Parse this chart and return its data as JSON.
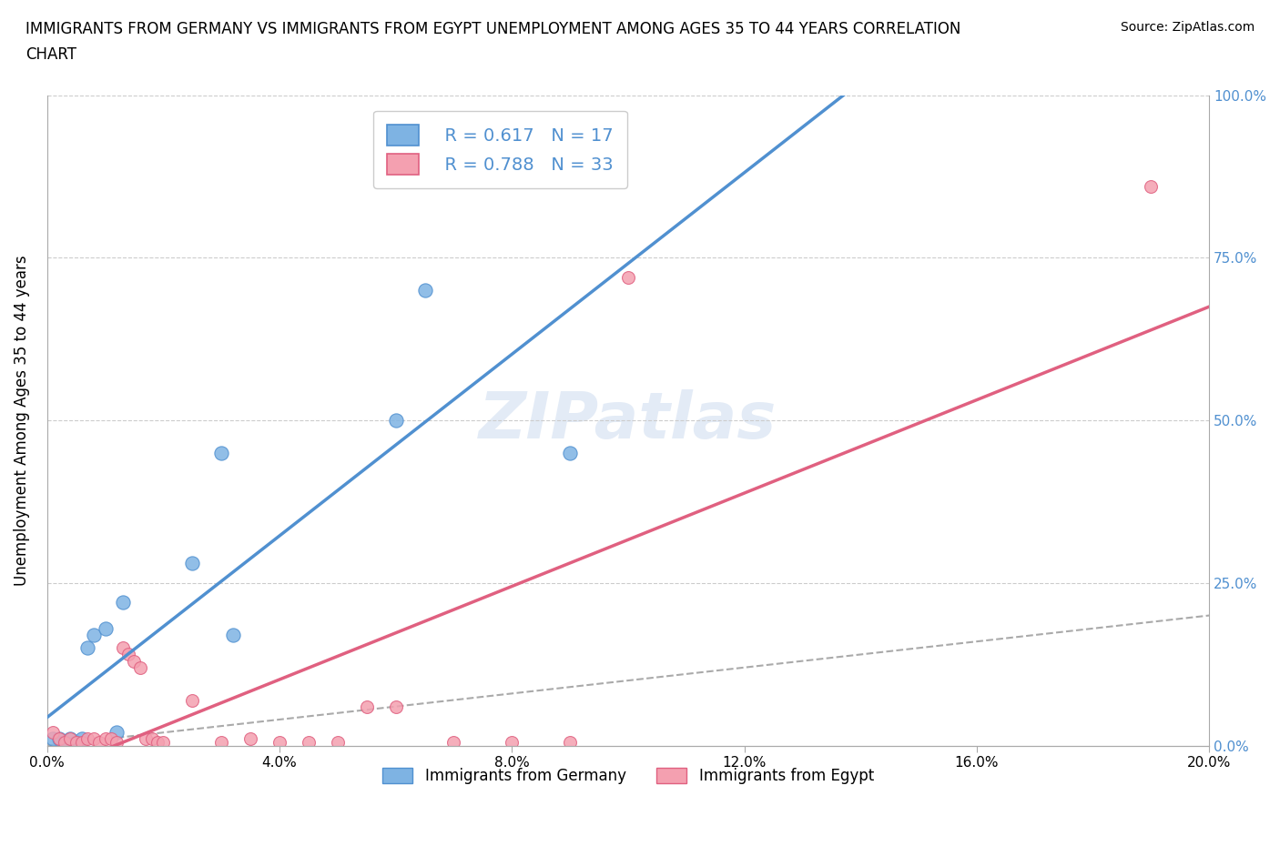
{
  "title_line1": "IMMIGRANTS FROM GERMANY VS IMMIGRANTS FROM EGYPT UNEMPLOYMENT AMONG AGES 35 TO 44 YEARS CORRELATION",
  "title_line2": "CHART",
  "source": "Source: ZipAtlas.com",
  "ylabel": "Unemployment Among Ages 35 to 44 years",
  "xlabel_germany": "Immigrants from Germany",
  "xlabel_egypt": "Immigrants from Egypt",
  "watermark": "ZIPatlas",
  "germany_scatter_x": [
    0.001,
    0.002,
    0.003,
    0.004,
    0.005,
    0.006,
    0.007,
    0.008,
    0.01,
    0.012,
    0.013,
    0.025,
    0.03,
    0.032,
    0.06,
    0.065,
    0.09
  ],
  "germany_scatter_y": [
    0.01,
    0.01,
    0.005,
    0.01,
    0.005,
    0.01,
    0.15,
    0.17,
    0.18,
    0.02,
    0.22,
    0.28,
    0.45,
    0.17,
    0.5,
    0.7,
    0.45
  ],
  "egypt_scatter_x": [
    0.001,
    0.002,
    0.003,
    0.004,
    0.005,
    0.006,
    0.007,
    0.008,
    0.009,
    0.01,
    0.011,
    0.012,
    0.013,
    0.014,
    0.015,
    0.016,
    0.017,
    0.018,
    0.019,
    0.02,
    0.025,
    0.03,
    0.035,
    0.04,
    0.045,
    0.05,
    0.055,
    0.06,
    0.07,
    0.08,
    0.09,
    0.1,
    0.19
  ],
  "egypt_scatter_y": [
    0.02,
    0.01,
    0.005,
    0.01,
    0.005,
    0.005,
    0.01,
    0.01,
    0.005,
    0.01,
    0.01,
    0.005,
    0.15,
    0.14,
    0.13,
    0.12,
    0.01,
    0.01,
    0.005,
    0.005,
    0.07,
    0.005,
    0.01,
    0.005,
    0.005,
    0.005,
    0.06,
    0.06,
    0.005,
    0.005,
    0.005,
    0.72,
    0.86
  ],
  "germany_R": 0.617,
  "germany_N": 17,
  "egypt_R": 0.788,
  "egypt_N": 33,
  "germany_color": "#7EB3E3",
  "egypt_color": "#F4A0B0",
  "germany_line_color": "#5090D0",
  "egypt_line_color": "#E06080",
  "diagonal_color": "#AAAAAA",
  "xlim": [
    0.0,
    0.2
  ],
  "ylim": [
    0.0,
    1.0
  ],
  "xticks": [
    0.0,
    0.04,
    0.08,
    0.12,
    0.16,
    0.2
  ],
  "yticks": [
    0.0,
    0.25,
    0.5,
    0.75,
    1.0
  ],
  "xtick_labels": [
    "0.0%",
    "4.0%",
    "8.0%",
    "12.0%",
    "16.0%",
    "20.0%"
  ],
  "ytick_labels": [
    "0.0%",
    "25.0%",
    "50.0%",
    "75.0%",
    "100.0%"
  ],
  "background_color": "#FFFFFF",
  "grid_color": "#CCCCCC"
}
